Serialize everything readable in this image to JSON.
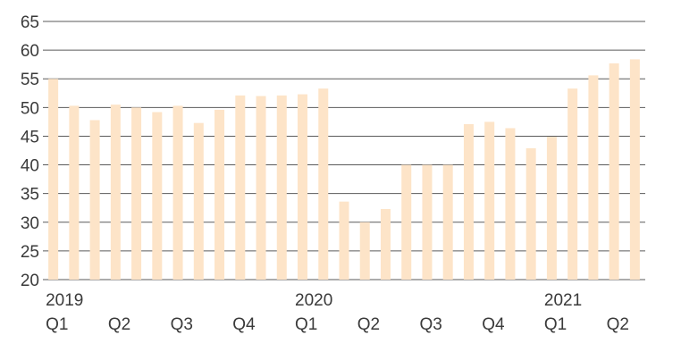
{
  "chart_data": {
    "type": "bar",
    "title": "",
    "xlabel": "",
    "ylabel": "",
    "ylim": [
      20,
      65
    ],
    "yticks": [
      "65",
      "60",
      "55",
      "50",
      "45",
      "40",
      "35",
      "30",
      "25",
      "20"
    ],
    "grid": true,
    "legend": "none",
    "bar_color": "#fde4c8",
    "grid_color": "#5a5a5a",
    "values": [
      55.0,
      50.3,
      47.8,
      50.5,
      50.0,
      49.2,
      50.3,
      47.3,
      49.6,
      52.1,
      52.0,
      52.1,
      52.3,
      53.3,
      33.6,
      30.0,
      32.3,
      40.0,
      40.0,
      40.0,
      47.1,
      47.5,
      46.4,
      42.9,
      44.9,
      53.3,
      55.6,
      57.7,
      58.4
    ],
    "x_labels": [
      {
        "index": 0,
        "year": "2019",
        "quarter": "Q1"
      },
      {
        "index": 3,
        "year": "",
        "quarter": "Q2"
      },
      {
        "index": 6,
        "year": "",
        "quarter": "Q3"
      },
      {
        "index": 9,
        "year": "",
        "quarter": "Q4"
      },
      {
        "index": 12,
        "year": "2020",
        "quarter": "Q1"
      },
      {
        "index": 15,
        "year": "",
        "quarter": "Q2"
      },
      {
        "index": 18,
        "year": "",
        "quarter": "Q3"
      },
      {
        "index": 21,
        "year": "",
        "quarter": "Q4"
      },
      {
        "index": 24,
        "year": "2021",
        "quarter": "Q1"
      },
      {
        "index": 27,
        "year": "",
        "quarter": "Q2"
      }
    ]
  }
}
